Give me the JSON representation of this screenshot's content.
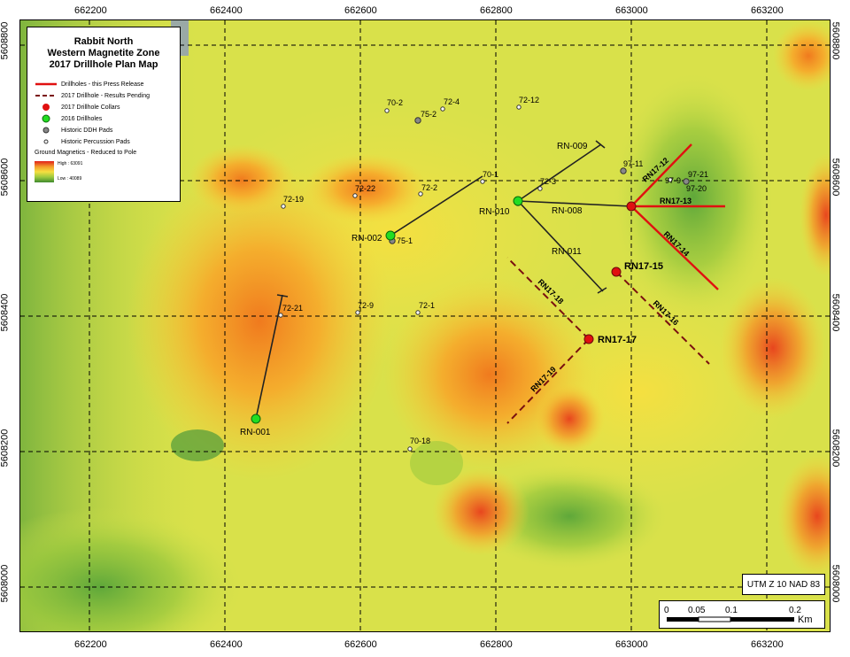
{
  "map": {
    "title_lines": [
      "Rabbit North",
      "Western Magnetite Zone",
      "2017 Drillhole Plan Map"
    ],
    "x_ticks": [
      "662200",
      "662400",
      "662600",
      "662800",
      "663000",
      "663200"
    ],
    "y_ticks": [
      "5608800",
      "5608600",
      "5608400",
      "5608200",
      "5608000"
    ],
    "projection": "UTM Z 10 NAD 83",
    "scale": {
      "labels": [
        "0",
        "0.05",
        "0.1",
        "0.2"
      ],
      "unit": "Km"
    }
  },
  "legend": {
    "items": [
      {
        "label": "Drillholes - this Press Release",
        "symbol": "solid-red-line"
      },
      {
        "label": "2017 Drillhole - Results Pending",
        "symbol": "dashed-darkred-line"
      },
      {
        "label": "2017 Drillhole Collars",
        "symbol": "red-dot"
      },
      {
        "label": "2016 Drillholes",
        "symbol": "green-dot"
      },
      {
        "label": "Historic DDH Pads",
        "symbol": "grey-circle"
      },
      {
        "label": "Historic Percussion Pads",
        "symbol": "small-circle"
      }
    ],
    "ramp_title": "Ground Magnetics - Reduced to Pole",
    "ramp_high": "High : 63091",
    "ramp_low": "Low : 40089"
  },
  "drillholes_2016": [
    "RN-001",
    "RN-002",
    "RN-008",
    "RN-009",
    "RN-010",
    "RN-011"
  ],
  "drillholes_2017_released": [
    "RN17-12",
    "RN17-13",
    "RN17-14"
  ],
  "drillholes_2017_pending": [
    "RN17-15",
    "RN17-16",
    "RN17-17",
    "RN17-18",
    "RN17-19"
  ],
  "historic_pads": [
    "70-2",
    "72-4",
    "75-2",
    "72-12",
    "97-11",
    "97-21",
    "97-9",
    "97-20",
    "72-19",
    "72-22",
    "72-2",
    "70-1",
    "72-3",
    "75-1",
    "72-21",
    "72-9",
    "72-1",
    "70-18"
  ],
  "colors": {
    "released": "#e01010",
    "pending": "#7a1010",
    "collar_2017": "#e01010",
    "collar_2016": "#22dd22",
    "grid": "#000000"
  }
}
